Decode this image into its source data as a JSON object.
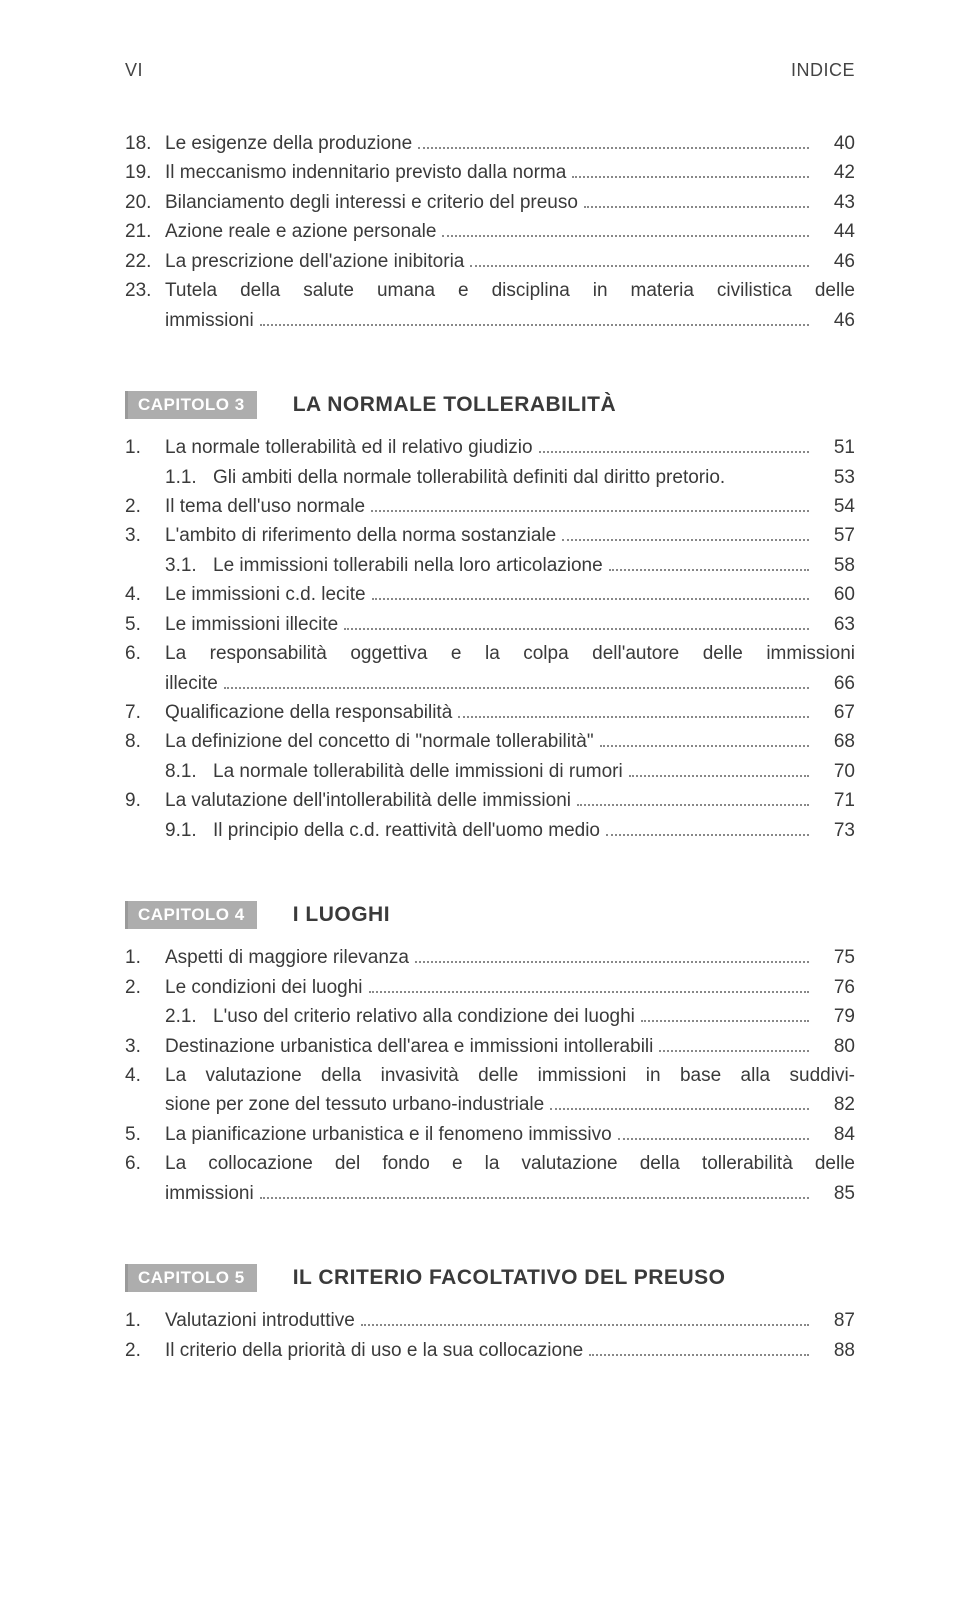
{
  "header": {
    "left": "VI",
    "right": "INDICE"
  },
  "preItems": [
    {
      "n": "18.",
      "t": "Le esigenze della produzione",
      "p": "40"
    },
    {
      "n": "19.",
      "t": "Il meccanismo indennitario previsto dalla norma",
      "p": "42"
    },
    {
      "n": "20.",
      "t": "Bilanciamento degli interessi e criterio del preuso",
      "p": "43"
    },
    {
      "n": "21.",
      "t": "Azione reale e azione personale",
      "p": "44"
    },
    {
      "n": "22.",
      "t": "La prescrizione dell'azione inibitoria",
      "p": "46"
    },
    {
      "n": "23.",
      "t1": "Tutela della salute umana e disciplina in materia civilistica delle",
      "t2": "immissioni",
      "p": "46",
      "wrap": true
    }
  ],
  "chapters": [
    {
      "badge": "CAPITOLO 3",
      "title": "LA NORMALE TOLLERABILITÀ",
      "items": [
        {
          "n": "1.",
          "t": "La normale tollerabilità ed il relativo giudizio",
          "p": "51"
        },
        {
          "n": "1.1.",
          "t": "Gli ambiti della normale tollerabilità definiti dal diritto pretorio.",
          "p": "53",
          "sub": true,
          "nodots": true
        },
        {
          "n": "2.",
          "t": "Il tema dell'uso normale",
          "p": "54"
        },
        {
          "n": "3.",
          "t": "L'ambito di riferimento della norma sostanziale",
          "p": "57"
        },
        {
          "n": "3.1.",
          "t": "Le immissioni tollerabili nella loro articolazione",
          "p": "58",
          "sub": true
        },
        {
          "n": "4.",
          "t": "Le immissioni c.d. lecite",
          "p": "60"
        },
        {
          "n": "5.",
          "t": "Le immissioni illecite",
          "p": "63"
        },
        {
          "n": "6.",
          "t1": "La responsabilità oggettiva e la colpa dell'autore delle immissioni",
          "t2": "illecite",
          "p": "66",
          "wrap": true
        },
        {
          "n": "7.",
          "t": "Qualificazione della responsabilità",
          "p": "67"
        },
        {
          "n": "8.",
          "t": "La definizione del concetto di \"normale tollerabilità\"",
          "p": "68"
        },
        {
          "n": "8.1.",
          "t": "La normale tollerabilità delle immissioni di rumori",
          "p": "70",
          "sub": true
        },
        {
          "n": "9.",
          "t": "La valutazione dell'intollerabilità delle immissioni",
          "p": "71"
        },
        {
          "n": "9.1.",
          "t": "Il principio della c.d. reattività dell'uomo medio",
          "p": "73",
          "sub": true
        }
      ]
    },
    {
      "badge": "CAPITOLO 4",
      "title": "I LUOGHI",
      "items": [
        {
          "n": "1.",
          "t": "Aspetti di maggiore rilevanza",
          "p": "75"
        },
        {
          "n": "2.",
          "t": "Le condizioni dei luoghi",
          "p": "76"
        },
        {
          "n": "2.1.",
          "t": "L'uso del criterio relativo alla condizione dei luoghi",
          "p": "79",
          "sub": true
        },
        {
          "n": "3.",
          "t": "Destinazione urbanistica dell'area e immissioni intollerabili",
          "p": "80"
        },
        {
          "n": "4.",
          "t1": "La valutazione della invasività delle immissioni in base alla suddivi-",
          "t2": "sione per zone del tessuto urbano-industriale",
          "p": "82",
          "wrap": true
        },
        {
          "n": "5.",
          "t": "La pianificazione urbanistica e il fenomeno immissivo",
          "p": "84"
        },
        {
          "n": "6.",
          "t1": "La collocazione del fondo e la valutazione della tollerabilità delle",
          "t2": "immissioni",
          "p": "85",
          "wrap": true
        }
      ]
    },
    {
      "badge": "CAPITOLO 5",
      "title": "IL CRITERIO FACOLTATIVO DEL PREUSO",
      "items": [
        {
          "n": "1.",
          "t": "Valutazioni introduttive",
          "p": "87"
        },
        {
          "n": "2.",
          "t": "Il criterio della priorità di uso e la sua collocazione",
          "p": "88"
        }
      ]
    }
  ]
}
